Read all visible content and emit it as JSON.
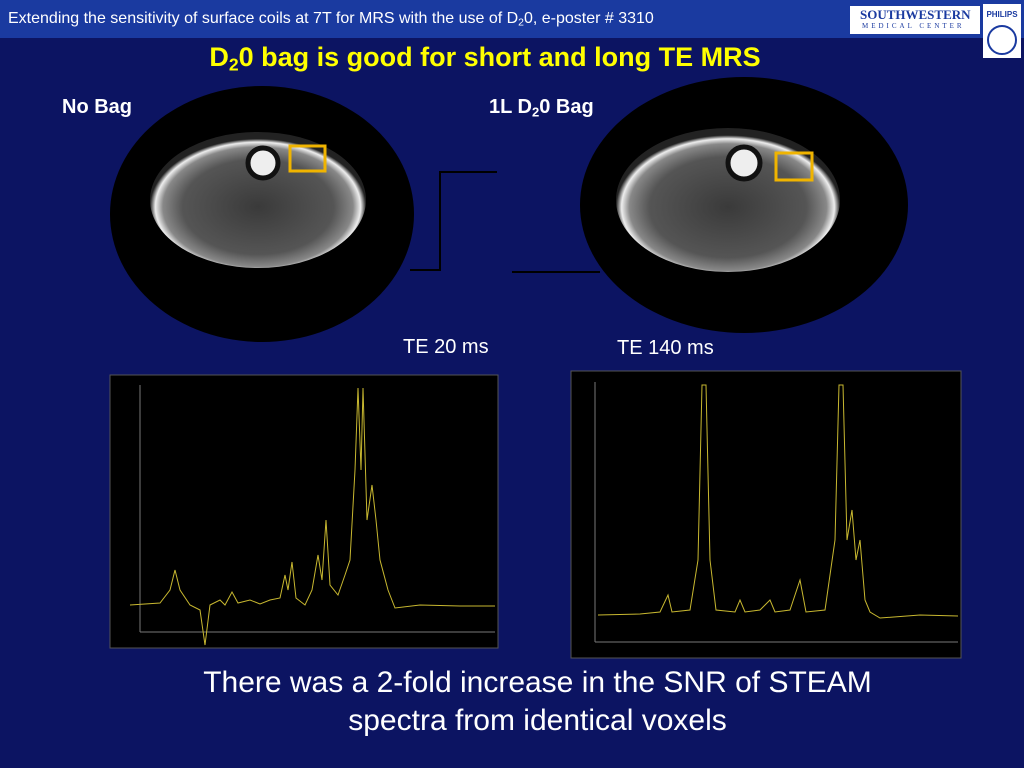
{
  "header": {
    "pre": "Extending the sensitivity of surface coils at 7T for MRS with the use of D",
    "sub": "2",
    "post": "0, e-poster # 3310"
  },
  "logos": {
    "utsw_top": "SOUTHWESTERN",
    "utsw_bottom": "MEDICAL CENTER",
    "philips": "PHILIPS"
  },
  "title": {
    "pre": "D",
    "sub": "2",
    "post": "0 bag is good for short and long TE MRS"
  },
  "labels": {
    "no_bag": "No Bag",
    "bag_pre": "1L D",
    "bag_sub": "2",
    "bag_post": "0 Bag",
    "te_short": "TE 20 ms",
    "te_long": "TE 140 ms"
  },
  "conclusion": {
    "line1": "There was a 2-fold increase in the SNR of STEAM",
    "line2": "spectra from identical voxels"
  }
}
